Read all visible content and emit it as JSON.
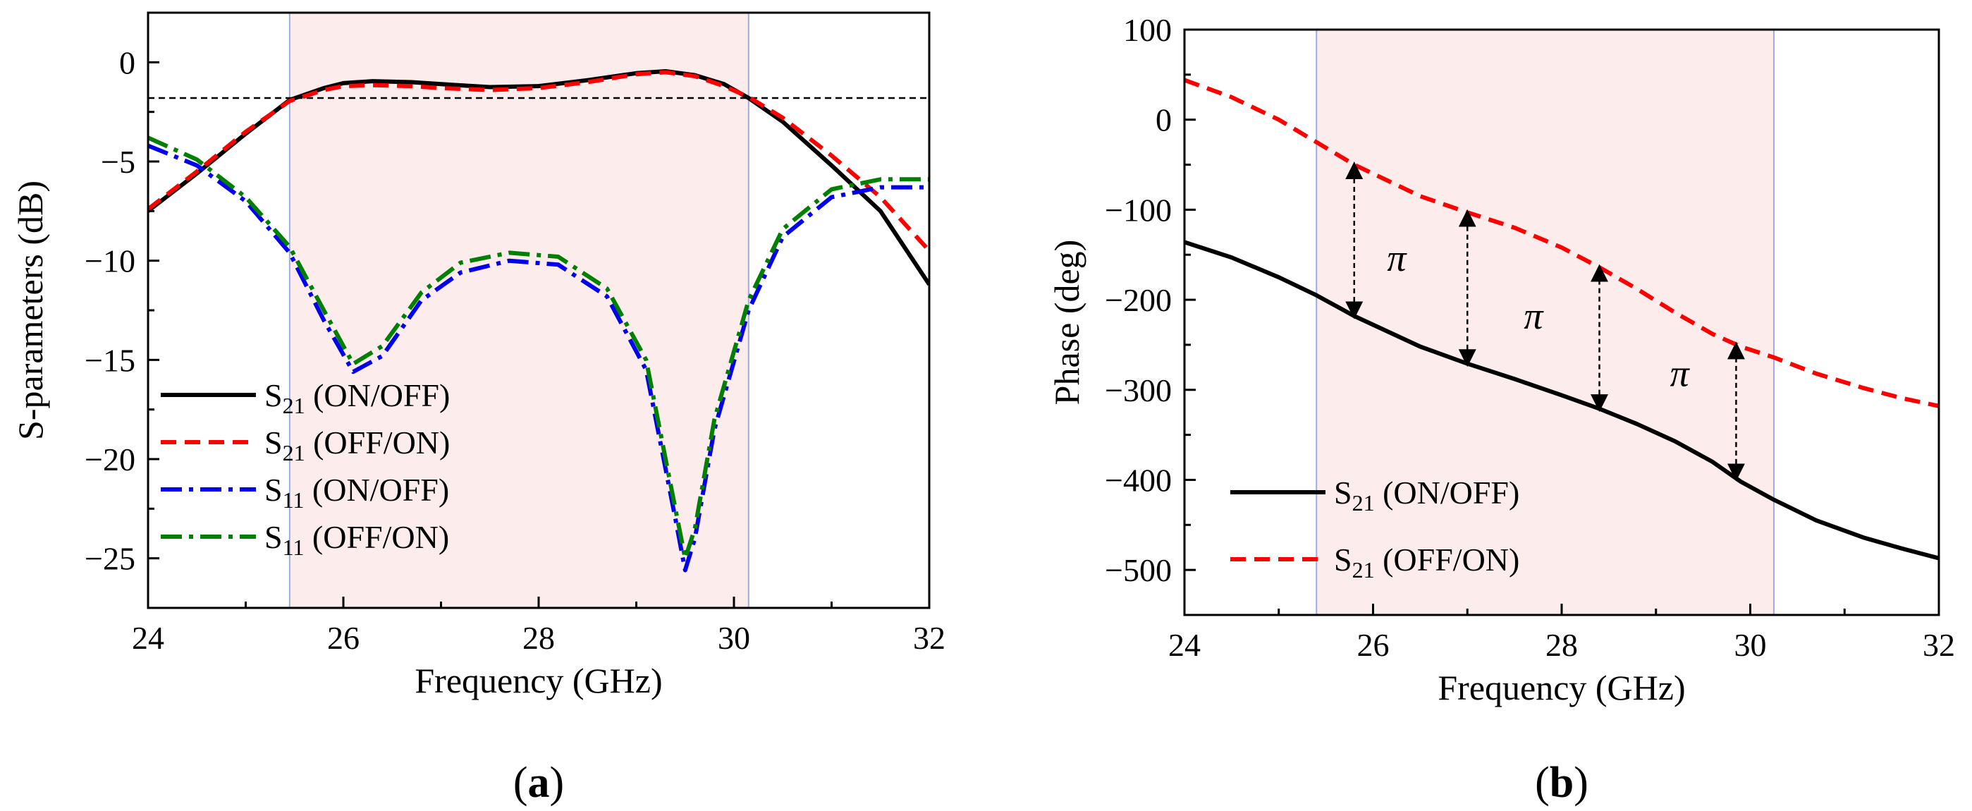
{
  "chart_data": [
    {
      "type": "line",
      "panel_label": {
        "open": "(",
        "letter": "a",
        "close": ")"
      },
      "xlabel": "Frequency (GHz)",
      "ylabel": "S-parameters (dB)",
      "xlim": [
        24,
        32
      ],
      "ylim": [
        -27.5,
        2.5
      ],
      "xticks": [
        24,
        26,
        28,
        30,
        32
      ],
      "xtick_labels": [
        "24",
        "26",
        "28",
        "30",
        "32"
      ],
      "yticks": [
        0,
        -5,
        -10,
        -15,
        -20,
        -25
      ],
      "ytick_labels": [
        "0",
        "−5",
        "−10",
        "−15",
        "−20",
        "−25"
      ],
      "highlight_band": [
        25.45,
        30.15
      ],
      "reference_line": {
        "y": -1.8,
        "style": "dashed"
      },
      "series": [
        {
          "name": "S21 (ON/OFF)",
          "sym": "S",
          "sub": "21",
          "label": " (ON/OFF)",
          "color": "#000000",
          "dash": "",
          "points": [
            [
              24,
              -7.5
            ],
            [
              24.5,
              -5.6
            ],
            [
              25,
              -3.6
            ],
            [
              25.45,
              -1.9
            ],
            [
              25.8,
              -1.3
            ],
            [
              26,
              -1.05
            ],
            [
              26.3,
              -0.95
            ],
            [
              26.7,
              -1.0
            ],
            [
              27,
              -1.1
            ],
            [
              27.5,
              -1.25
            ],
            [
              28,
              -1.2
            ],
            [
              28.5,
              -0.9
            ],
            [
              29,
              -0.55
            ],
            [
              29.3,
              -0.45
            ],
            [
              29.6,
              -0.65
            ],
            [
              29.9,
              -1.1
            ],
            [
              30.15,
              -1.8
            ],
            [
              30.5,
              -3.0
            ],
            [
              31,
              -5.2
            ],
            [
              31.5,
              -7.5
            ],
            [
              32,
              -11.2
            ]
          ]
        },
        {
          "name": "S21 (OFF/ON)",
          "sym": "S",
          "sub": "21",
          "label": " (OFF/ON)",
          "color": "#ff0000",
          "dash": "22,12",
          "points": [
            [
              24,
              -7.4
            ],
            [
              24.5,
              -5.5
            ],
            [
              25,
              -3.5
            ],
            [
              25.45,
              -1.95
            ],
            [
              25.8,
              -1.4
            ],
            [
              26,
              -1.2
            ],
            [
              26.3,
              -1.15
            ],
            [
              26.7,
              -1.2
            ],
            [
              27,
              -1.3
            ],
            [
              27.5,
              -1.4
            ],
            [
              28,
              -1.3
            ],
            [
              28.5,
              -1.0
            ],
            [
              29,
              -0.6
            ],
            [
              29.3,
              -0.5
            ],
            [
              29.6,
              -0.7
            ],
            [
              29.9,
              -1.2
            ],
            [
              30.15,
              -1.75
            ],
            [
              30.5,
              -2.8
            ],
            [
              31,
              -4.7
            ],
            [
              31.5,
              -6.8
            ],
            [
              32,
              -9.5
            ]
          ]
        },
        {
          "name": "S11 (ON/OFF)",
          "sym": "S",
          "sub": "11",
          "label": " (ON/OFF)",
          "color": "#0000ee",
          "dash": "30,10,6,10",
          "points": [
            [
              24,
              -4.2
            ],
            [
              24.5,
              -5.2
            ],
            [
              25,
              -7.0
            ],
            [
              25.45,
              -9.6
            ],
            [
              25.8,
              -13.0
            ],
            [
              26.1,
              -15.6
            ],
            [
              26.4,
              -14.8
            ],
            [
              26.8,
              -12.0
            ],
            [
              27.2,
              -10.6
            ],
            [
              27.7,
              -10.0
            ],
            [
              28.2,
              -10.2
            ],
            [
              28.7,
              -11.8
            ],
            [
              29.1,
              -15.5
            ],
            [
              29.4,
              -23.0
            ],
            [
              29.5,
              -25.6
            ],
            [
              29.6,
              -24.0
            ],
            [
              29.8,
              -18.5
            ],
            [
              30.15,
              -12.5
            ],
            [
              30.5,
              -8.8
            ],
            [
              31,
              -6.8
            ],
            [
              31.5,
              -6.3
            ],
            [
              32,
              -6.3
            ]
          ]
        },
        {
          "name": "S11 (OFF/ON)",
          "sym": "S",
          "sub": "11",
          "label": " (OFF/ON)",
          "color": "#008000",
          "dash": "30,10,6,10",
          "points": [
            [
              24,
              -3.8
            ],
            [
              24.5,
              -4.9
            ],
            [
              25,
              -6.8
            ],
            [
              25.45,
              -9.3
            ],
            [
              25.8,
              -12.5
            ],
            [
              26.1,
              -15.2
            ],
            [
              26.4,
              -14.3
            ],
            [
              26.8,
              -11.6
            ],
            [
              27.2,
              -10.1
            ],
            [
              27.7,
              -9.6
            ],
            [
              28.2,
              -9.8
            ],
            [
              28.7,
              -11.4
            ],
            [
              29.1,
              -15.0
            ],
            [
              29.4,
              -22.5
            ],
            [
              29.5,
              -25.0
            ],
            [
              29.6,
              -23.5
            ],
            [
              29.8,
              -18.0
            ],
            [
              30.15,
              -12.0
            ],
            [
              30.5,
              -8.4
            ],
            [
              31,
              -6.4
            ],
            [
              31.5,
              -5.9
            ],
            [
              32,
              -5.9
            ]
          ]
        }
      ]
    },
    {
      "type": "line",
      "panel_label": {
        "open": "(",
        "letter": "b",
        "close": ")"
      },
      "xlabel": "Frequency (GHz)",
      "ylabel": "Phase (deg)",
      "xlim": [
        24,
        32
      ],
      "ylim": [
        -550,
        100
      ],
      "xticks": [
        24,
        26,
        28,
        30,
        32
      ],
      "xtick_labels": [
        "24",
        "26",
        "28",
        "30",
        "32"
      ],
      "yticks": [
        100,
        0,
        -100,
        -200,
        -300,
        -400,
        -500
      ],
      "ytick_labels": [
        "100",
        "0",
        "−100",
        "−200",
        "−300",
        "−400",
        "−500"
      ],
      "highlight_band": [
        25.4,
        30.25
      ],
      "series": [
        {
          "name": "S21 (ON/OFF)",
          "sym": "S",
          "sub": "21",
          "label": " (ON/OFF)",
          "color": "#000000",
          "dash": "",
          "points": [
            [
              24,
              -136
            ],
            [
              24.5,
              -153
            ],
            [
              25,
              -175
            ],
            [
              25.4,
              -195
            ],
            [
              25.8,
              -218
            ],
            [
              26.5,
              -252
            ],
            [
              27,
              -271
            ],
            [
              27.5,
              -288
            ],
            [
              28,
              -306
            ],
            [
              28.4,
              -321
            ],
            [
              28.8,
              -338
            ],
            [
              29.2,
              -357
            ],
            [
              29.6,
              -380
            ],
            [
              29.9,
              -402
            ],
            [
              30.25,
              -422
            ],
            [
              30.7,
              -445
            ],
            [
              31.2,
              -464
            ],
            [
              31.6,
              -476
            ],
            [
              32,
              -487
            ]
          ]
        },
        {
          "name": "S21 (OFF/ON)",
          "sym": "S",
          "sub": "21",
          "label": " (OFF/ON)",
          "color": "#ff0000",
          "dash": "22,12",
          "points": [
            [
              24,
              44
            ],
            [
              24.5,
              25
            ],
            [
              25,
              0
            ],
            [
              25.4,
              -25
            ],
            [
              25.8,
              -50
            ],
            [
              26.5,
              -85
            ],
            [
              27,
              -103
            ],
            [
              27.5,
              -120
            ],
            [
              28,
              -142
            ],
            [
              28.4,
              -164
            ],
            [
              28.8,
              -188
            ],
            [
              29.2,
              -214
            ],
            [
              29.6,
              -238
            ],
            [
              29.9,
              -252
            ],
            [
              30.25,
              -264
            ],
            [
              30.7,
              -282
            ],
            [
              31.2,
              -298
            ],
            [
              31.6,
              -309
            ],
            [
              32,
              -318
            ]
          ]
        }
      ],
      "annotations": [
        {
          "type": "arrow",
          "x": 25.8,
          "y1": -218,
          "y2": -50
        },
        {
          "type": "arrow",
          "x": 27.0,
          "y1": -271,
          "y2": -103
        },
        {
          "type": "arrow",
          "x": 28.4,
          "y1": -321,
          "y2": -164
        },
        {
          "type": "arrow",
          "x": 29.85,
          "y1": -398,
          "y2": -250
        },
        {
          "type": "text",
          "text": "π",
          "x": 26.25,
          "y": -168
        },
        {
          "type": "text",
          "text": "π",
          "x": 27.7,
          "y": -232
        },
        {
          "type": "text",
          "text": "π",
          "x": 29.25,
          "y": -296
        }
      ]
    }
  ]
}
